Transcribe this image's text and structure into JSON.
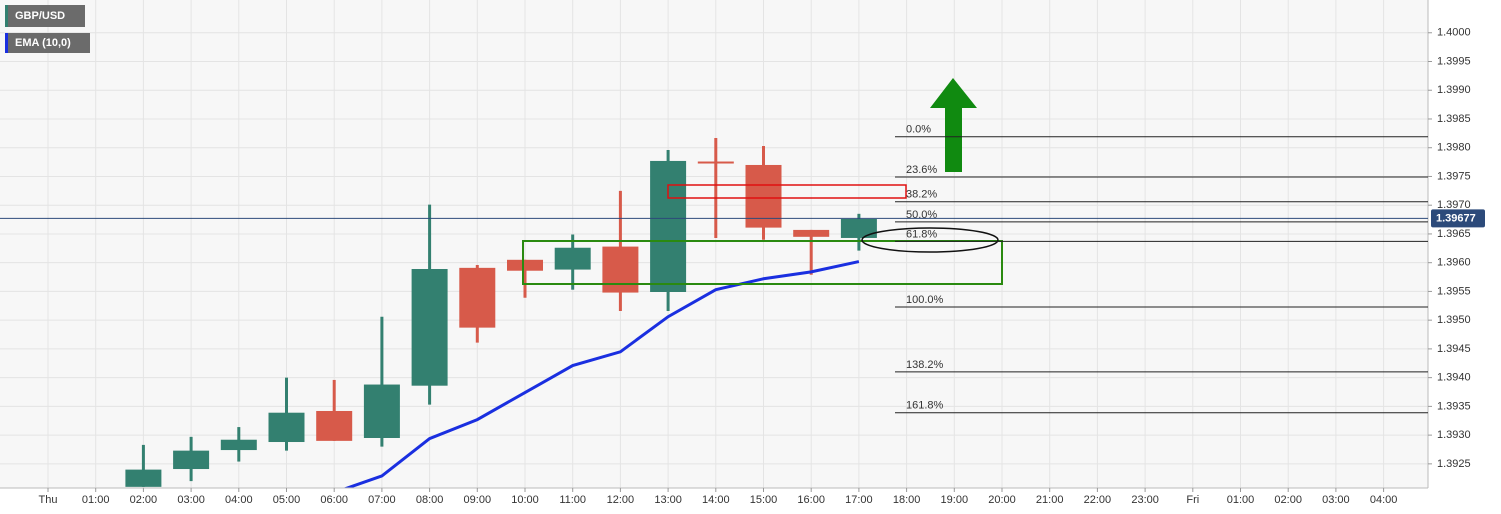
{
  "chart_data": {
    "type": "candlestick",
    "title": "GBP/USD",
    "categories": [
      "Thu",
      "01:00",
      "02:00",
      "03:00",
      "04:00",
      "05:00",
      "06:00",
      "07:00",
      "08:00",
      "09:00",
      "10:00",
      "11:00",
      "12:00",
      "13:00",
      "14:00",
      "15:00",
      "16:00",
      "17:00",
      "18:00",
      "19:00",
      "20:00",
      "21:00",
      "22:00",
      "23:00",
      "Fri",
      "01:00",
      "02:00",
      "03:00",
      "04:00"
    ],
    "open": [
      null,
      null,
      1.3921,
      1.39241,
      1.39274,
      1.39288,
      1.39342,
      1.39295,
      1.39386,
      1.39591,
      1.39605,
      1.39588,
      1.39628,
      1.39549,
      1.39776,
      1.3977,
      1.39657,
      1.39643,
      null,
      null,
      null,
      null,
      null,
      null,
      null,
      null,
      null,
      null,
      null
    ],
    "high": [
      null,
      null,
      1.39283,
      1.39297,
      1.39314,
      1.394,
      1.39396,
      1.39506,
      1.39701,
      1.39596,
      1.39605,
      1.39649,
      1.39725,
      1.39796,
      1.39817,
      1.39803,
      1.39657,
      1.39685,
      null,
      null,
      null,
      null,
      null,
      null,
      null,
      null,
      null,
      null,
      null
    ],
    "low": [
      null,
      null,
      1.3921,
      1.3922,
      1.39254,
      1.39273,
      1.3929,
      1.3928,
      1.39353,
      1.39461,
      1.39539,
      1.39553,
      1.39516,
      1.39516,
      1.39643,
      1.3964,
      1.39579,
      1.39621,
      null,
      null,
      null,
      null,
      null,
      null,
      null,
      null,
      null,
      null,
      null
    ],
    "close": [
      null,
      null,
      1.3924,
      1.39273,
      1.39292,
      1.39339,
      1.3929,
      1.39388,
      1.39589,
      1.39487,
      1.39586,
      1.39626,
      1.39548,
      1.39777,
      1.39774,
      1.39661,
      1.39645,
      1.39676,
      null,
      null,
      null,
      null,
      null,
      null,
      null,
      null,
      null,
      null,
      null
    ],
    "up_color": "#338070",
    "down_color": "#d75a4a",
    "series": [
      {
        "name": "EMA (10,0)",
        "color": "#1a2fe0",
        "values": [
          null,
          null,
          null,
          null,
          null,
          null,
          1.392,
          1.39229,
          1.39294,
          1.39327,
          1.39374,
          1.39421,
          1.39445,
          1.39506,
          1.39553,
          1.39572,
          1.39584,
          1.39602,
          null,
          null,
          null,
          null,
          null,
          null,
          null,
          null,
          null,
          null,
          null
        ]
      }
    ],
    "ylim": [
      1.39208,
      1.40057
    ],
    "yticks": [
      {
        "value": 1.3925,
        "label": "1.3925"
      },
      {
        "value": 1.393,
        "label": "1.3930"
      },
      {
        "value": 1.3935,
        "label": "1.3935"
      },
      {
        "value": 1.394,
        "label": "1.3940"
      },
      {
        "value": 1.3945,
        "label": "1.3945"
      },
      {
        "value": 1.395,
        "label": "1.3950"
      },
      {
        "value": 1.3955,
        "label": "1.3955"
      },
      {
        "value": 1.396,
        "label": "1.3960"
      },
      {
        "value": 1.3965,
        "label": "1.3965"
      },
      {
        "value": 1.397,
        "label": "1.3970"
      },
      {
        "value": 1.3975,
        "label": "1.3975"
      },
      {
        "value": 1.398,
        "label": "1.3980"
      },
      {
        "value": 1.3985,
        "label": "1.3985"
      },
      {
        "value": 1.399,
        "label": "1.3990"
      },
      {
        "value": 1.3995,
        "label": "1.3995"
      },
      {
        "value": 1.4,
        "label": "1.4000"
      }
    ],
    "current_price": 1.39677,
    "fib_levels": [
      {
        "label": "0.0%",
        "value": 1.39819
      },
      {
        "label": "23.6%",
        "value": 1.39749
      },
      {
        "label": "38.2%",
        "value": 1.39706
      },
      {
        "label": "50.0%",
        "value": 1.39671
      },
      {
        "label": "61.8%",
        "value": 1.39637
      },
      {
        "label": "100.0%",
        "value": 1.39523
      },
      {
        "label": "138.2%",
        "value": 1.3941
      },
      {
        "label": "161.8%",
        "value": 1.39339
      }
    ],
    "grid": true
  }
}
